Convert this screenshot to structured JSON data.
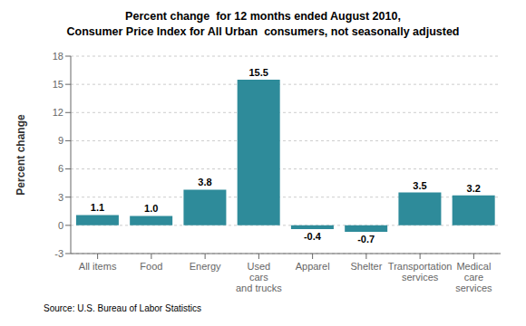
{
  "chart_data": {
    "type": "bar",
    "title": "Percent change  for 12 months ended August 2010,",
    "subtitle": "Consumer Price Index for All Urban  consumers, not seasonally adjusted",
    "categories": [
      "All items",
      "Food",
      "Energy",
      "Used\ncars\nand trucks",
      "Apparel",
      "Shelter",
      "Transportation\nservices",
      "Medical\ncare\nservices"
    ],
    "values": [
      1.1,
      1.0,
      3.8,
      15.5,
      -0.4,
      -0.7,
      3.5,
      3.2
    ],
    "value_labels": [
      "1.1",
      "1.0",
      "3.8",
      "15.5",
      "-0.4",
      "-0.7",
      "3.5",
      "3.2"
    ],
    "color": "#2e8b9a",
    "ylabel": "Percent change",
    "ylim": [
      -3,
      18
    ],
    "yticks": [
      -3,
      0,
      3,
      6,
      9,
      12,
      15,
      18
    ],
    "grid": true,
    "data_labels": true,
    "annotations": [
      "Source: U.S. Bureau of Labor Statistics"
    ]
  }
}
